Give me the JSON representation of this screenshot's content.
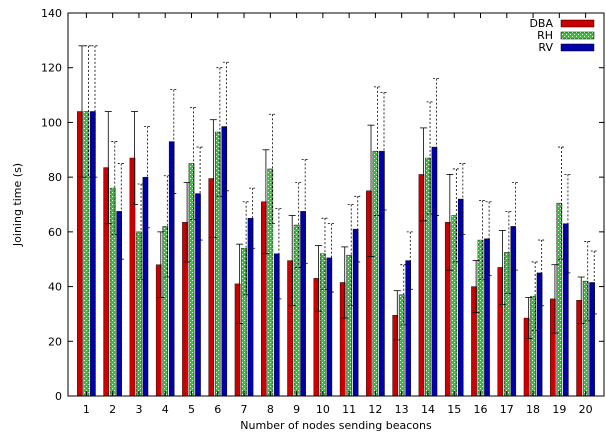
{
  "chart_data": {
    "type": "bar",
    "xlabel": "Number of nodes sending beacons",
    "ylabel": "Joining time (s)",
    "ylim": [
      0,
      140
    ],
    "yticks": [
      0,
      20,
      40,
      60,
      80,
      100,
      120,
      140
    ],
    "grid": false,
    "legend_position": "top-right",
    "categories": [
      "1",
      "2",
      "3",
      "4",
      "5",
      "6",
      "7",
      "8",
      "9",
      "10",
      "11",
      "12",
      "13",
      "14",
      "15",
      "16",
      "17",
      "18",
      "19",
      "20"
    ],
    "series": [
      {
        "name": "DBA",
        "color": "#cc0000",
        "pattern": "solid",
        "values": [
          104,
          83.5,
          87,
          48,
          63.5,
          79.5,
          41,
          71,
          49.5,
          43,
          41.5,
          75,
          29.5,
          81,
          63.5,
          40,
          47,
          28.5,
          35.5,
          35
        ],
        "error_high": [
          128,
          104,
          104,
          60,
          78,
          101,
          55.5,
          90,
          66,
          55,
          54.5,
          99,
          38.5,
          98,
          81,
          49.5,
          60.5,
          36,
          48,
          43.5
        ]
      },
      {
        "name": "RH",
        "color": "#22cc22",
        "pattern": "dotted",
        "values": [
          104,
          76,
          60,
          62,
          85,
          96.5,
          54,
          83,
          62.5,
          52,
          51.5,
          89.5,
          37,
          87,
          66,
          57,
          52.5,
          36.5,
          70.5,
          42
        ],
        "error_high": [
          128,
          93,
          77.5,
          80.5,
          105.5,
          120,
          71,
          103,
          78,
          65,
          70,
          113,
          48,
          107.5,
          83,
          71.5,
          67.5,
          49,
          91,
          56.5
        ]
      },
      {
        "name": "RV",
        "color": "#0000aa",
        "pattern": "solid",
        "values": [
          104,
          67.5,
          80,
          93,
          74,
          98.5,
          65,
          52,
          67.5,
          50.5,
          61,
          89.5,
          49.5,
          91,
          72,
          57.5,
          62,
          45,
          63,
          41.5
        ],
        "error_high": [
          128,
          85,
          98.5,
          112,
          91,
          122,
          76,
          68.5,
          86.5,
          63,
          73,
          111,
          60,
          116,
          85,
          71,
          78,
          57,
          81,
          53
        ]
      }
    ]
  }
}
